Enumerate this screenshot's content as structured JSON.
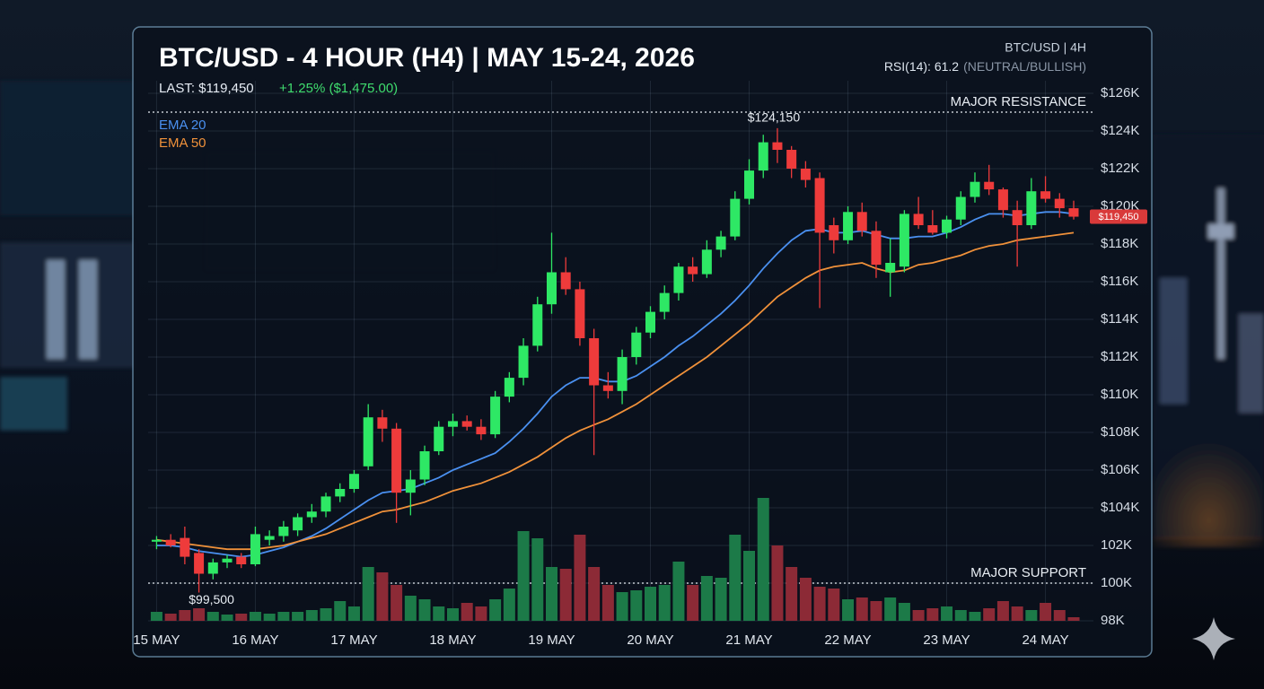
{
  "header": {
    "title": "BTC/USD - 4 HOUR (H4) | MAY 15-24, 2026",
    "last": "LAST: $119,450",
    "change": "+1.25% ($1,475.00)",
    "symbol": "BTC/USD | 4H",
    "rsi": "RSI(14): 61.2",
    "rsi_note": "(NEUTRAL/BULLISH)"
  },
  "chart_data": {
    "type": "candlestick",
    "x": [
      0,
      1,
      2,
      3,
      4,
      5,
      6,
      7,
      8,
      9,
      10,
      11,
      12,
      13,
      14,
      15,
      16,
      17,
      18,
      19,
      20,
      21,
      22,
      23,
      24,
      25,
      26,
      27,
      28,
      29,
      30,
      31,
      32,
      33,
      34,
      35,
      36,
      37,
      38,
      39,
      40,
      41,
      42,
      43,
      44,
      45,
      46,
      47,
      48,
      49,
      50,
      51,
      52,
      53,
      54,
      55,
      56,
      57,
      58,
      59,
      60,
      61,
      62,
      63,
      64,
      65
    ],
    "open": [
      102200,
      102300,
      102400,
      101600,
      100500,
      101100,
      101400,
      101000,
      102300,
      102500,
      102800,
      103500,
      103800,
      104600,
      105000,
      106200,
      108800,
      108200,
      104800,
      105500,
      107000,
      108300,
      108600,
      108300,
      107900,
      109900,
      110900,
      112600,
      114800,
      116500,
      115600,
      113000,
      110500,
      110200,
      112000,
      113300,
      114400,
      115400,
      116800,
      116400,
      117700,
      118400,
      120400,
      121900,
      123400,
      123000,
      122000,
      121500,
      119000,
      118200,
      119700,
      118700,
      116500,
      116800,
      119600,
      119000,
      118600,
      119300,
      120500,
      121300,
      120900,
      119800,
      119000,
      120800,
      120400,
      119900
    ],
    "high": [
      102500,
      102600,
      103000,
      101800,
      101300,
      101500,
      101600,
      103000,
      102800,
      103300,
      103700,
      104200,
      104800,
      105300,
      106000,
      109500,
      109200,
      108500,
      106000,
      107300,
      108600,
      109000,
      108900,
      108700,
      110200,
      111200,
      113000,
      115200,
      118600,
      117300,
      116000,
      113500,
      111200,
      112400,
      113600,
      114700,
      115800,
      117000,
      117300,
      118200,
      118700,
      120800,
      122500,
      123800,
      124150,
      123200,
      122400,
      121800,
      119400,
      120000,
      120200,
      119200,
      118300,
      119800,
      120500,
      119800,
      119500,
      120800,
      121800,
      122200,
      121000,
      120300,
      121500,
      121600,
      120700,
      120300
    ],
    "low": [
      101800,
      101900,
      101000,
      99500,
      100200,
      100800,
      100800,
      100900,
      102000,
      102200,
      102500,
      103200,
      103500,
      104300,
      104800,
      106000,
      107500,
      103200,
      103600,
      105200,
      106800,
      107800,
      108100,
      107600,
      107700,
      109600,
      110500,
      112300,
      114300,
      115300,
      112600,
      106800,
      109800,
      109500,
      111600,
      113000,
      114000,
      115000,
      116000,
      116200,
      117300,
      118200,
      120100,
      121500,
      122300,
      121500,
      121000,
      114600,
      117500,
      118000,
      118400,
      116200,
      115200,
      116500,
      118800,
      118500,
      118300,
      119000,
      120200,
      120600,
      119400,
      116800,
      118800,
      120200,
      119400,
      119300
    ],
    "close": [
      102300,
      102000,
      101400,
      100500,
      101100,
      101300,
      101000,
      102600,
      102500,
      103000,
      103500,
      103800,
      104600,
      105000,
      105800,
      108800,
      108200,
      104800,
      105500,
      107000,
      108300,
      108600,
      108300,
      107900,
      109900,
      110900,
      112600,
      114800,
      116500,
      115600,
      113000,
      110500,
      110200,
      112000,
      113300,
      114400,
      115400,
      116800,
      116400,
      117700,
      118400,
      120400,
      121900,
      123400,
      123000,
      122000,
      121400,
      118600,
      118200,
      119700,
      118700,
      116900,
      117000,
      119600,
      119000,
      118600,
      119300,
      120500,
      121300,
      120900,
      119800,
      119000,
      120800,
      120400,
      119900,
      119450
    ],
    "volume": [
      10,
      8,
      12,
      14,
      10,
      7,
      8,
      10,
      8,
      10,
      10,
      12,
      14,
      22,
      16,
      60,
      54,
      40,
      28,
      24,
      16,
      14,
      20,
      16,
      24,
      36,
      100,
      92,
      60,
      58,
      96,
      60,
      40,
      32,
      34,
      38,
      40,
      66,
      40,
      50,
      48,
      96,
      78,
      137,
      84,
      60,
      48,
      38,
      36,
      24,
      26,
      22,
      26,
      20,
      12,
      14,
      16,
      12,
      10,
      14,
      22,
      16,
      12,
      20,
      12,
      4
    ],
    "volume_lim": [
      0,
      140
    ],
    "up_color": "#2ee865",
    "down_color": "#ee3b3b",
    "volume_up_color": "#1c7a48",
    "volume_down_color": "#8c2a36",
    "series": [
      {
        "name": "EMA 20",
        "color": "#4a90f0",
        "values": [
          102000,
          102000,
          101900,
          101700,
          101600,
          101500,
          101400,
          101500,
          101700,
          101900,
          102200,
          102500,
          102900,
          103400,
          103900,
          104400,
          104800,
          104900,
          105000,
          105300,
          105600,
          106000,
          106300,
          106600,
          106900,
          107500,
          108200,
          109000,
          109900,
          110500,
          110900,
          110900,
          110700,
          110700,
          111000,
          111500,
          112000,
          112600,
          113100,
          113700,
          114300,
          115000,
          115800,
          116700,
          117500,
          118200,
          118700,
          118800,
          118600,
          118600,
          118700,
          118500,
          118300,
          118300,
          118400,
          118400,
          118600,
          118900,
          119300,
          119600,
          119600,
          119500,
          119600,
          119700,
          119700,
          119600
        ]
      },
      {
        "name": "EMA 50",
        "color": "#f0913a",
        "values": [
          102300,
          102200,
          102100,
          102000,
          101900,
          101800,
          101800,
          101800,
          101900,
          102000,
          102200,
          102400,
          102600,
          102900,
          103200,
          103500,
          103800,
          103900,
          104100,
          104300,
          104600,
          104900,
          105100,
          105300,
          105600,
          105900,
          106300,
          106700,
          107200,
          107700,
          108100,
          108400,
          108700,
          109100,
          109500,
          110000,
          110500,
          111000,
          111500,
          112000,
          112600,
          113200,
          113800,
          114500,
          115200,
          115700,
          116200,
          116600,
          116800,
          116900,
          117000,
          116700,
          116500,
          116600,
          116900,
          117000,
          117200,
          117400,
          117700,
          117900,
          118000,
          118200,
          118300,
          118400,
          118500,
          118600
        ]
      }
    ],
    "xlim": [
      -0.6,
      66.4
    ],
    "xticks": [
      {
        "value": 0,
        "label": "15 MAY"
      },
      {
        "value": 7,
        "label": "16 MAY"
      },
      {
        "value": 14,
        "label": "17 MAY"
      },
      {
        "value": 21,
        "label": "18 MAY"
      },
      {
        "value": 28,
        "label": "19 MAY"
      },
      {
        "value": 35,
        "label": "20 MAY"
      },
      {
        "value": 42,
        "label": "21 MAY"
      },
      {
        "value": 49,
        "label": "22 MAY"
      },
      {
        "value": 56,
        "label": "23 MAY"
      },
      {
        "value": 63,
        "label": "24 MAY"
      }
    ],
    "ylim": [
      98000,
      126000
    ],
    "yticks": [
      {
        "value": 98000,
        "label": "98K"
      },
      {
        "value": 100000,
        "label": "100K"
      },
      {
        "value": 102000,
        "label": "102K"
      },
      {
        "value": 104000,
        "label": "$104K"
      },
      {
        "value": 106000,
        "label": "$106K"
      },
      {
        "value": 108000,
        "label": "$108K"
      },
      {
        "value": 110000,
        "label": "$110K"
      },
      {
        "value": 112000,
        "label": "$112K"
      },
      {
        "value": 114000,
        "label": "$114K"
      },
      {
        "value": 116000,
        "label": "$116K"
      },
      {
        "value": 118000,
        "label": "$118K"
      },
      {
        "value": 120000,
        "label": "$120K"
      },
      {
        "value": 122000,
        "label": "$122K"
      },
      {
        "value": 124000,
        "label": "$124K"
      },
      {
        "value": 126000,
        "label": "$126K"
      }
    ],
    "grid": true,
    "reference_lines": [
      {
        "label": "MAJOR RESISTANCE",
        "value": 125000
      },
      {
        "label": "MAJOR SUPPORT",
        "value": 100000
      }
    ],
    "annotations": [
      {
        "label": "$124,150",
        "value": 124150
      },
      {
        "label": "$99,500",
        "value": 99500
      }
    ],
    "last_price": {
      "label": "$119,450",
      "value": 119450
    }
  }
}
